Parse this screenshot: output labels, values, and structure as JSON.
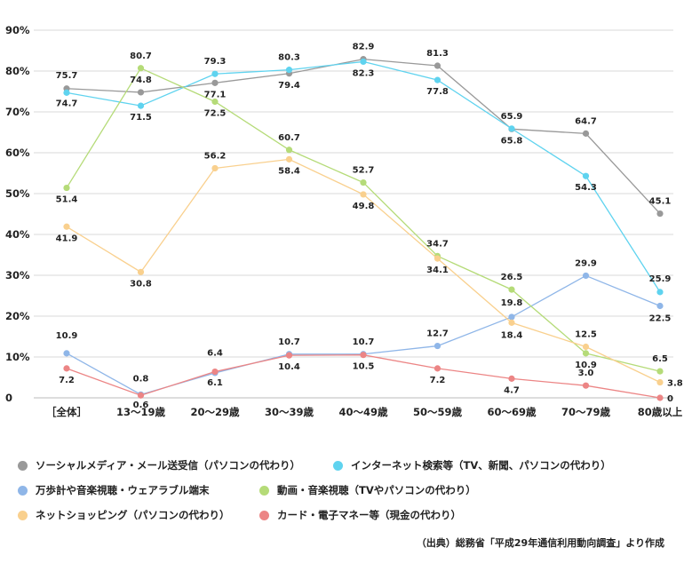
{
  "chart_data": {
    "type": "line",
    "categories": [
      "［全体］",
      "13〜19歳",
      "20〜29歳",
      "30〜39歳",
      "40〜49歳",
      "50〜59歳",
      "60〜69歳",
      "70〜79歳",
      "80歳以上"
    ],
    "ylim": [
      0,
      90
    ],
    "yticks": [
      "0",
      "10%",
      "20%",
      "30%",
      "40%",
      "50%",
      "60%",
      "70%",
      "80%",
      "90%"
    ],
    "grid": true,
    "legend_position": "bottom",
    "series": [
      {
        "name": "ソーシャルメディア・メール送受信（パソコンの代わり）",
        "color": "#999999",
        "values": [
          75.7,
          74.8,
          77.1,
          79.4,
          82.9,
          81.3,
          65.8,
          64.7,
          45.1
        ]
      },
      {
        "name": "インターネット検索等（TV、新聞、パソコンの代わり）",
        "color": "#5fd3ef",
        "values": [
          74.7,
          71.5,
          79.3,
          80.3,
          82.3,
          77.8,
          65.9,
          54.3,
          25.9
        ]
      },
      {
        "name": "万歩計や音楽視聴・ウェアラブル端末",
        "color": "#8fb6e8",
        "values": [
          10.9,
          0.8,
          6.1,
          10.7,
          10.7,
          12.7,
          19.8,
          29.9,
          22.5
        ]
      },
      {
        "name": "動画・音楽視聴（TVやパソコンの代わり）",
        "color": "#b5db78",
        "values": [
          51.4,
          80.7,
          72.5,
          60.7,
          52.7,
          34.7,
          26.5,
          10.9,
          6.5
        ]
      },
      {
        "name": "ネットショッピング（パソコンの代わり）",
        "color": "#f9d08e",
        "values": [
          41.9,
          30.8,
          56.2,
          58.4,
          49.8,
          34.1,
          18.4,
          12.5,
          3.8
        ]
      },
      {
        "name": "カード・電子マネー等（現金の代わり）",
        "color": "#ec8585",
        "values": [
          7.2,
          0.6,
          6.4,
          10.4,
          10.5,
          7.2,
          4.7,
          3.0,
          0
        ]
      }
    ],
    "data_labels": [
      {
        "series": 0,
        "labels": [
          "75.7",
          "74.8",
          "77.1",
          "79.4",
          "82.9",
          "81.3",
          "65.8",
          "64.7",
          "45.1"
        ]
      },
      {
        "series": 1,
        "labels": [
          "74.7",
          "71.5",
          "79.3",
          "80.3",
          "82.3",
          "77.8",
          "65.9",
          "54.3",
          "25.9"
        ]
      },
      {
        "series": 2,
        "labels": [
          "10.9",
          "0.8",
          "6.1",
          "10.7",
          "10.7",
          "12.7",
          "19.8",
          "29.9",
          "22.5"
        ]
      },
      {
        "series": 3,
        "labels": [
          "51.4",
          "80.7",
          "72.5",
          "60.7",
          "52.7",
          "34.7",
          "26.5",
          "10.9",
          "6.5"
        ]
      },
      {
        "series": 4,
        "labels": [
          "41.9",
          "30.8",
          "56.2",
          "58.4",
          "49.8",
          "34.1",
          "18.4",
          "12.5",
          "3.8"
        ]
      },
      {
        "series": 5,
        "labels": [
          "7.2",
          "0.6",
          "6.4",
          "10.4",
          "10.5",
          "7.2",
          "4.7",
          "3.0",
          "0"
        ]
      }
    ]
  },
  "source_note": "（出典）総務省「平成29年通信利用動向調査」より作成"
}
